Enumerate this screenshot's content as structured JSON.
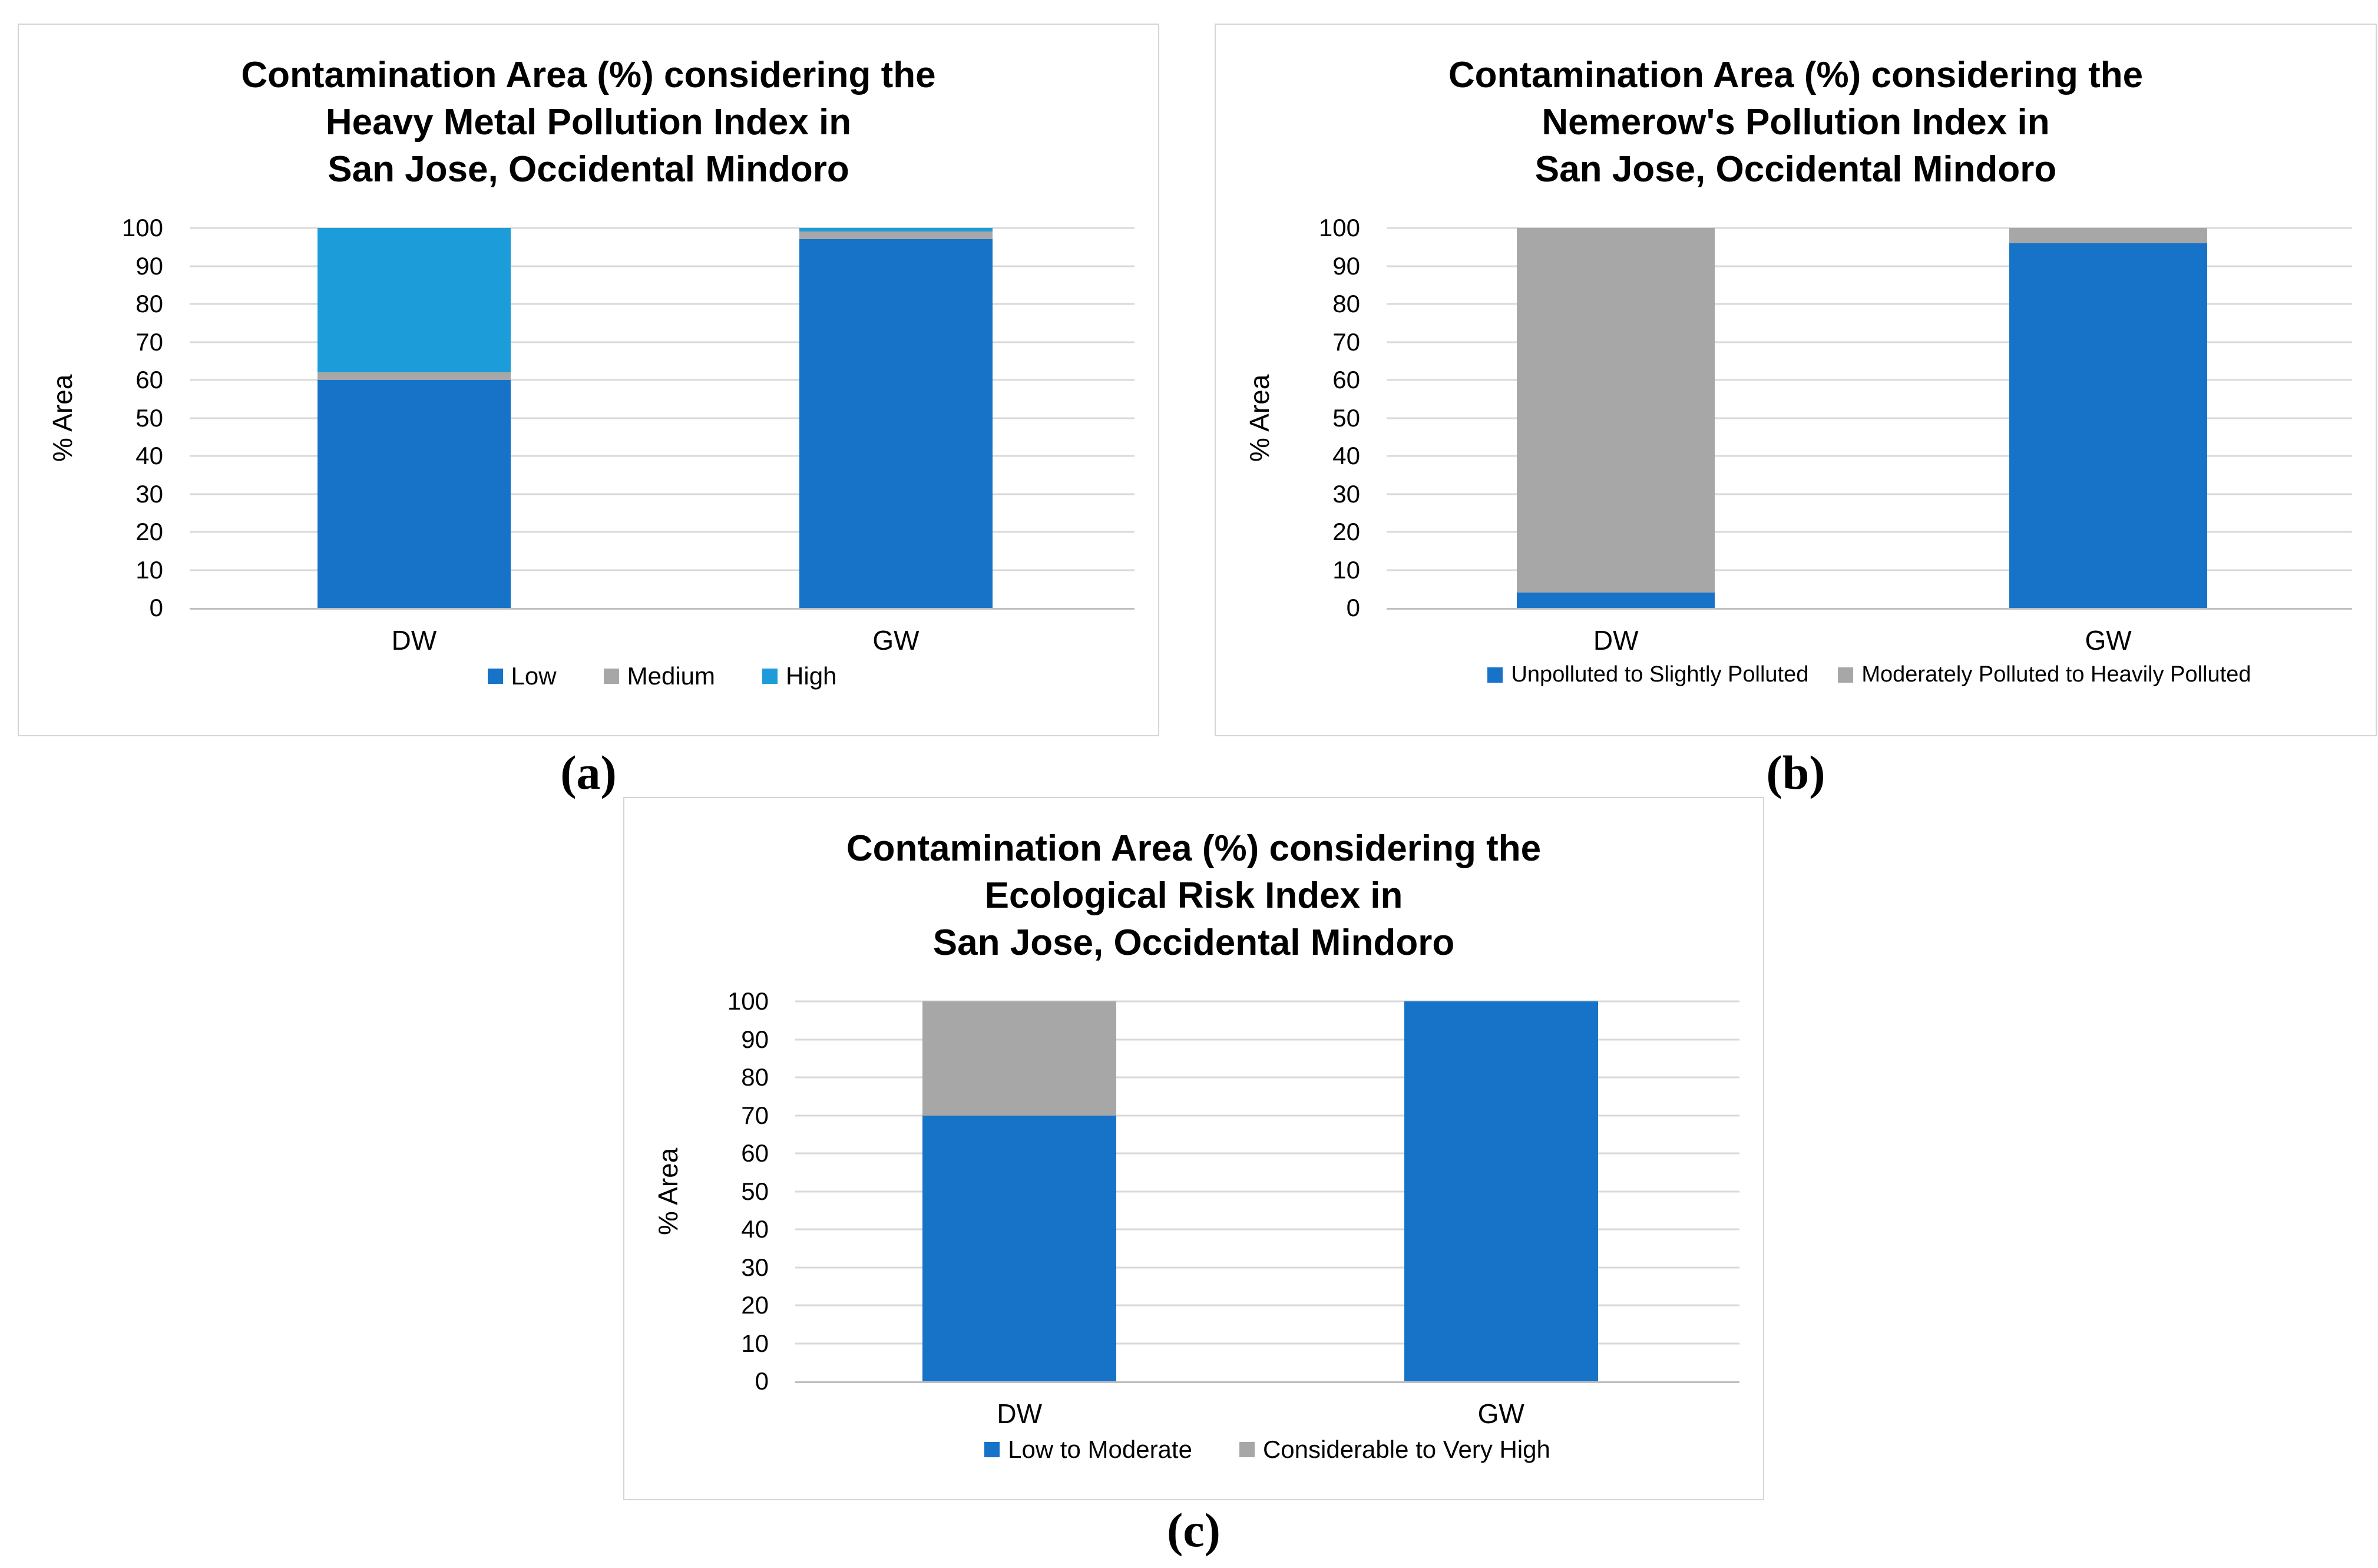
{
  "figure": {
    "background": "#FFFFFF",
    "captions": {
      "a": "(a)",
      "b": "(b)",
      "c": "(c)"
    }
  },
  "palette": {
    "blue": "#1673C8",
    "cyan": "#1C9DD9",
    "gray": "#A7A7A7",
    "gridline": "#D9D9D9",
    "axis_line": "#BFBFBF",
    "panel_border": "#D5D5D5",
    "text": "#000000"
  },
  "chart_data": [
    {
      "type": "bar",
      "stacked": true,
      "caption": "(a)",
      "title": "Contamination Area (%) considering the\nHeavy Metal Pollution Index in\nSan Jose, Occidental Mindoro",
      "xlabel": "",
      "ylabel": "% Area",
      "ylim": [
        0,
        100
      ],
      "yticks": [
        0,
        10,
        20,
        30,
        40,
        50,
        60,
        70,
        80,
        90,
        100
      ],
      "grid": true,
      "legend_position": "bottom",
      "categories": [
        "DW",
        "GW"
      ],
      "series": [
        {
          "name": "Low",
          "color": "#1673C8",
          "values": [
            60,
            97
          ]
        },
        {
          "name": "Medium",
          "color": "#A7A7A7",
          "values": [
            2,
            2
          ]
        },
        {
          "name": "High",
          "color": "#1C9DD9",
          "values": [
            38,
            1
          ]
        }
      ]
    },
    {
      "type": "bar",
      "stacked": true,
      "caption": "(b)",
      "title": "Contamination Area (%) considering the\nNemerow's Pollution Index in\nSan Jose, Occidental Mindoro",
      "xlabel": "",
      "ylabel": "% Area",
      "ylim": [
        0,
        100
      ],
      "yticks": [
        0,
        10,
        20,
        30,
        40,
        50,
        60,
        70,
        80,
        90,
        100
      ],
      "grid": true,
      "legend_position": "bottom",
      "categories": [
        "DW",
        "GW"
      ],
      "series": [
        {
          "name": "Unpolluted to Slightly Polluted",
          "color": "#1673C8",
          "values": [
            4,
            96
          ]
        },
        {
          "name": "Moderately Polluted to Heavily Polluted",
          "color": "#A7A7A7",
          "values": [
            96,
            4
          ]
        }
      ]
    },
    {
      "type": "bar",
      "stacked": true,
      "caption": "(c)",
      "title": "Contamination Area (%) considering the\nEcological Risk Index in\nSan Jose, Occidental Mindoro",
      "xlabel": "",
      "ylabel": "% Area",
      "ylim": [
        0,
        100
      ],
      "yticks": [
        0,
        10,
        20,
        30,
        40,
        50,
        60,
        70,
        80,
        90,
        100
      ],
      "grid": true,
      "legend_position": "bottom",
      "categories": [
        "DW",
        "GW"
      ],
      "series": [
        {
          "name": "Low to Moderate",
          "color": "#1673C8",
          "values": [
            70,
            100
          ]
        },
        {
          "name": "Considerable to Very High",
          "color": "#A7A7A7",
          "values": [
            30,
            0
          ]
        }
      ]
    }
  ]
}
